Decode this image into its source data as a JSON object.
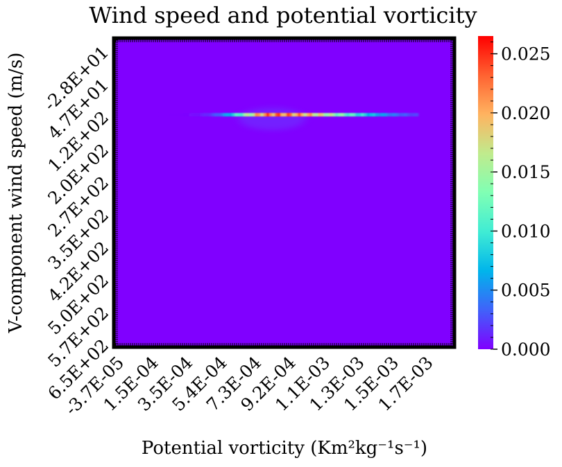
{
  "chart_data": {
    "type": "heatmap",
    "title": "Wind speed and potential vorticity",
    "xlabel": "Potential vorticity (Km²kg⁻¹s⁻¹)",
    "ylabel": "V-component wind speed (m/s)",
    "x_tick_labels": [
      "-3.7E-05",
      "1.5E-04",
      "3.5E-04",
      "5.4E-04",
      "7.3E-04",
      "9.2E-04",
      "1.1E-03",
      "1.3E-03",
      "1.5E-03",
      "1.7E-03"
    ],
    "y_tick_labels": [
      "-2.8E+01",
      "4.7E+01",
      "1.2E+02",
      "2.0E+02",
      "2.7E+02",
      "3.5E+02",
      "4.2E+02",
      "5.0E+02",
      "5.7E+02",
      "6.5E+02"
    ],
    "colorbar": {
      "colormap": "rainbow",
      "ticks": [
        "0.000",
        "0.005",
        "0.010",
        "0.015",
        "0.020",
        "0.025"
      ],
      "range": [
        0.0,
        0.0265
      ]
    },
    "grid": false,
    "band": {
      "y_value": 150,
      "x_range": [
        0.00022,
        0.00165
      ],
      "peak_x": 0.00084,
      "peak_value": 0.026
    }
  }
}
